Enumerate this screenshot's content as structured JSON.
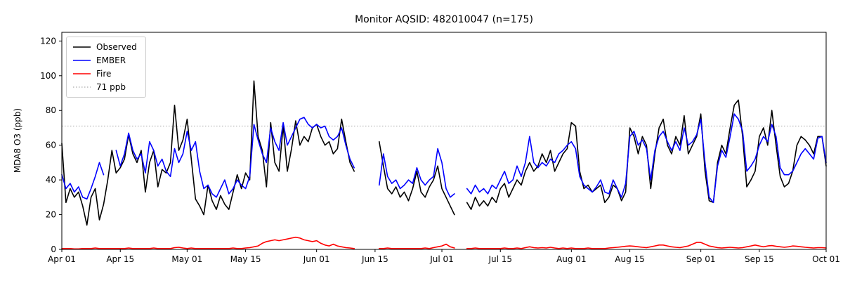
{
  "chart_data": {
    "type": "line",
    "title": "Monitor AQSID: 482010047 (n=175)",
    "xlabel": "",
    "ylabel": "MDA8 O3 (ppb)",
    "ylim": [
      0,
      125
    ],
    "yticks": [
      0,
      20,
      40,
      60,
      80,
      100,
      120
    ],
    "xlim": [
      0,
      183
    ],
    "x_unit": "days since Apr 01",
    "xticks": [
      {
        "pos": 0,
        "label": "Apr 01"
      },
      {
        "pos": 14,
        "label": "Apr 15"
      },
      {
        "pos": 30,
        "label": "May 01"
      },
      {
        "pos": 44,
        "label": "May 15"
      },
      {
        "pos": 61,
        "label": "Jun 01"
      },
      {
        "pos": 75,
        "label": "Jun 15"
      },
      {
        "pos": 91,
        "label": "Jul 01"
      },
      {
        "pos": 105,
        "label": "Jul 15"
      },
      {
        "pos": 122,
        "label": "Aug 01"
      },
      {
        "pos": 136,
        "label": "Aug 15"
      },
      {
        "pos": 153,
        "label": "Sep 01"
      },
      {
        "pos": 167,
        "label": "Sep 15"
      },
      {
        "pos": 183,
        "label": "Oct 01"
      }
    ],
    "threshold": {
      "value": 71,
      "label": "71 ppb",
      "color": "#b8b8b8",
      "dash": "dotted"
    },
    "legend": [
      {
        "label": "Observed",
        "color": "#000000",
        "dash": "solid"
      },
      {
        "label": "EMBER",
        "color": "#0000ff",
        "dash": "solid"
      },
      {
        "label": "Fire",
        "color": "#ff0000",
        "dash": "solid"
      },
      {
        "label": "71 ppb",
        "color": "#b8b8b8",
        "dash": "dotted"
      }
    ],
    "legend_position": "upper left",
    "grid": false,
    "series": [
      {
        "name": "Observed",
        "color": "#000000",
        "values": [
          61,
          27,
          35,
          30,
          33,
          25,
          14,
          30,
          35,
          17,
          26,
          40,
          57,
          44,
          47,
          52,
          66,
          55,
          50,
          57,
          33,
          50,
          57,
          36,
          46,
          44,
          50,
          83,
          57,
          63,
          75,
          52,
          29,
          25,
          20,
          37,
          28,
          23,
          31,
          26,
          23,
          33,
          43,
          35,
          44,
          40,
          97,
          65,
          57,
          36,
          73,
          50,
          45,
          71,
          45,
          58,
          74,
          60,
          65,
          62,
          70,
          72,
          65,
          60,
          62,
          55,
          58,
          75,
          62,
          50,
          45,
          null,
          null,
          null,
          null,
          null,
          62,
          48,
          35,
          32,
          36,
          30,
          33,
          28,
          35,
          45,
          33,
          30,
          36,
          40,
          48,
          35,
          30,
          25,
          20,
          null,
          null,
          27,
          23,
          30,
          25,
          28,
          25,
          30,
          27,
          35,
          38,
          30,
          35,
          40,
          37,
          45,
          50,
          45,
          48,
          55,
          50,
          57,
          45,
          50,
          55,
          58,
          73,
          71,
          45,
          35,
          37,
          33,
          35,
          37,
          27,
          30,
          37,
          35,
          28,
          33,
          70,
          65,
          55,
          65,
          60,
          35,
          55,
          70,
          75,
          60,
          55,
          65,
          60,
          77,
          55,
          60,
          65,
          78,
          45,
          28,
          27,
          50,
          60,
          55,
          70,
          83,
          86,
          65,
          36,
          40,
          45,
          65,
          70,
          60,
          80,
          60,
          42,
          36,
          38,
          45,
          60,
          65,
          63,
          60,
          55,
          65,
          65,
          48
        ]
      },
      {
        "name": "EMBER",
        "color": "#0000ff",
        "values": [
          43,
          35,
          38,
          33,
          36,
          30,
          29,
          35,
          42,
          50,
          43,
          null,
          null,
          57,
          48,
          55,
          67,
          57,
          52,
          55,
          44,
          62,
          57,
          48,
          52,
          45,
          42,
          58,
          50,
          55,
          68,
          57,
          62,
          45,
          35,
          37,
          32,
          30,
          35,
          40,
          32,
          35,
          40,
          37,
          35,
          42,
          72,
          63,
          55,
          50,
          70,
          62,
          57,
          73,
          60,
          65,
          70,
          75,
          76,
          72,
          70,
          72,
          70,
          71,
          65,
          63,
          65,
          70,
          60,
          52,
          47,
          null,
          null,
          null,
          null,
          null,
          37,
          55,
          42,
          38,
          40,
          35,
          37,
          40,
          38,
          47,
          40,
          37,
          40,
          42,
          58,
          50,
          35,
          30,
          32,
          null,
          null,
          35,
          32,
          37,
          33,
          35,
          32,
          37,
          35,
          40,
          45,
          38,
          40,
          48,
          42,
          50,
          65,
          50,
          47,
          50,
          48,
          52,
          50,
          55,
          57,
          60,
          62,
          58,
          42,
          37,
          35,
          33,
          36,
          40,
          33,
          32,
          40,
          35,
          30,
          38,
          65,
          68,
          60,
          63,
          58,
          40,
          57,
          65,
          68,
          62,
          57,
          62,
          57,
          70,
          60,
          62,
          66,
          75,
          50,
          30,
          27,
          48,
          57,
          53,
          65,
          78,
          75,
          68,
          45,
          48,
          52,
          60,
          65,
          62,
          72,
          65,
          47,
          43,
          43,
          45,
          50,
          55,
          58,
          55,
          52,
          64,
          65,
          50
        ]
      },
      {
        "name": "Fire",
        "color": "#ff0000",
        "values": [
          0.5,
          0.5,
          0.5,
          0.3,
          0.3,
          0.5,
          0.5,
          0.5,
          0.8,
          0.5,
          0.5,
          0.5,
          0.5,
          0.5,
          0.5,
          0.5,
          0.8,
          0.5,
          0.5,
          0.5,
          0.5,
          0.5,
          0.8,
          0.5,
          0.5,
          0.5,
          0.5,
          1,
          1.2,
          0.8,
          0.5,
          0.8,
          0.5,
          0.5,
          0.5,
          0.5,
          0.5,
          0.5,
          0.5,
          0.5,
          0.5,
          0.8,
          0.5,
          0.5,
          0.8,
          1,
          1.5,
          2,
          3.5,
          4.5,
          5,
          5.5,
          5,
          5.5,
          6,
          6.5,
          7,
          6.5,
          5.5,
          5,
          4.5,
          5,
          3.5,
          2.5,
          2,
          3,
          2,
          1.5,
          1,
          0.8,
          0.5,
          null,
          null,
          null,
          null,
          null,
          0.5,
          0.5,
          0.8,
          0.5,
          0.5,
          0.5,
          0.5,
          0.5,
          0.5,
          0.5,
          0.5,
          0.8,
          0.5,
          1,
          1.5,
          2,
          3,
          1.5,
          0.8,
          null,
          null,
          0.5,
          0.5,
          0.8,
          0.5,
          0.5,
          0.5,
          0.5,
          0.5,
          0.5,
          0.8,
          0.5,
          0.5,
          0.8,
          0.5,
          1,
          1.5,
          1,
          0.8,
          1,
          0.8,
          1.2,
          0.8,
          0.5,
          0.8,
          0.5,
          0.8,
          0.5,
          0.5,
          0.5,
          0.8,
          0.5,
          0.5,
          0.5,
          0.5,
          0.8,
          1,
          1.2,
          1.5,
          1.8,
          2,
          1.8,
          1.5,
          1.2,
          1,
          1.5,
          2,
          2.5,
          2.5,
          2,
          1.5,
          1.2,
          1,
          1.5,
          2,
          3,
          4,
          4,
          3,
          2,
          1.5,
          1,
          0.8,
          1,
          1.2,
          1,
          0.8,
          1,
          1.5,
          2,
          2.5,
          2,
          1.5,
          2,
          2.2,
          1.8,
          1.5,
          1.2,
          1.5,
          2,
          1.8,
          1.5,
          1.2,
          1,
          0.8,
          1,
          1,
          0.8
        ]
      }
    ]
  }
}
